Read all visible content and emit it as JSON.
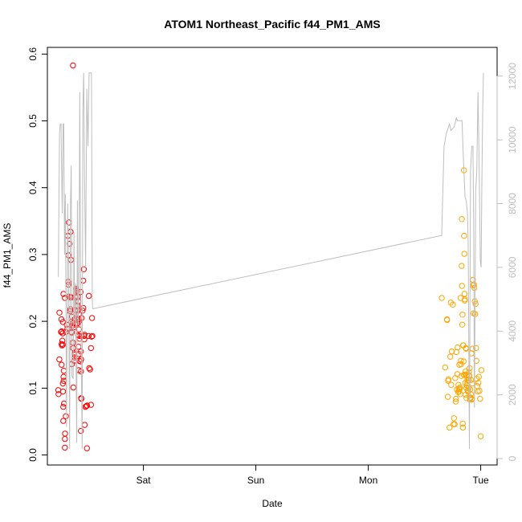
{
  "chart_data": {
    "type": "scatter",
    "title": "ATOM1 Northeast_Pacific f44_PM1_AMS",
    "xlabel": "Date",
    "ylabel": "f44_PM1_AMS",
    "x_axis": {
      "type": "date",
      "range": [
        "2016-08-05T03:30",
        "2016-08-09T03:30"
      ],
      "ticks": [
        {
          "value": "2016-08-06T00:00",
          "label": "Sat"
        },
        {
          "value": "2016-08-07T00:00",
          "label": "Sun"
        },
        {
          "value": "2016-08-08T00:00",
          "label": "Mon"
        },
        {
          "value": "2016-08-09T00:00",
          "label": "Tue"
        }
      ]
    },
    "y_axis_left": {
      "range": [
        -0.015,
        0.61
      ],
      "ticks": [
        "0.0",
        "0.1",
        "0.2",
        "0.3",
        "0.4",
        "0.5",
        "0.6"
      ]
    },
    "y_axis_right": {
      "color": "#bebebe",
      "range": [
        -200,
        12900
      ],
      "ticks": [
        "0",
        "2000",
        "4000",
        "6000",
        "8000",
        "10000",
        "12000"
      ]
    },
    "grid": false,
    "legend": "none",
    "series": [
      {
        "color": "#ff0000",
        "marker": "open-circle",
        "x": [
          "2016-08-05T05:50",
          "2016-08-05T05:53",
          "2016-08-05T06:04",
          "2016-08-05T06:03",
          "2016-08-05T06:25",
          "2016-08-05T06:41",
          "2016-08-05T06:32",
          "2016-08-05T06:49",
          "2016-08-05T06:45",
          "2016-08-05T06:48",
          "2016-08-05T06:30",
          "2016-08-05T06:33",
          "2016-08-05T06:37",
          "2016-08-05T06:56",
          "2016-08-05T06:32",
          "2016-08-05T07:00",
          "2016-08-05T06:57",
          "2016-08-05T06:48",
          "2016-08-05T07:14",
          "2016-08-05T06:59",
          "2016-08-05T06:51",
          "2016-08-05T06:54",
          "2016-08-05T06:54",
          "2016-08-05T07:03",
          "2016-08-05T07:14",
          "2016-08-05T07:16",
          "2016-08-05T07:14",
          "2016-08-05T07:27",
          "2016-08-05T07:28",
          "2016-08-05T07:39",
          "2016-08-05T07:46",
          "2016-08-05T08:06",
          "2016-08-05T07:53",
          "2016-08-05T08:15",
          "2016-08-05T07:58",
          "2016-08-05T08:07",
          "2016-08-05T07:56",
          "2016-08-05T07:59",
          "2016-08-05T08:25",
          "2016-08-05T08:24",
          "2016-08-05T08:19",
          "2016-08-05T08:27",
          "2016-08-05T08:32",
          "2016-08-05T08:42",
          "2016-08-05T08:58",
          "2016-08-05T08:45",
          "2016-08-05T08:44",
          "2016-08-05T08:34",
          "2016-08-05T08:43",
          "2016-08-05T08:38",
          "2016-08-05T08:51",
          "2016-08-05T08:54",
          "2016-08-05T08:56",
          "2016-08-05T09:05",
          "2016-08-05T09:02",
          "2016-08-05T08:58",
          "2016-08-05T09:11",
          "2016-08-05T09:16",
          "2016-08-05T09:15",
          "2016-08-05T09:16",
          "2016-08-05T09:20",
          "2016-08-05T09:27",
          "2016-08-05T09:35",
          "2016-08-05T09:31",
          "2016-08-05T09:36",
          "2016-08-05T09:40",
          "2016-08-05T09:43",
          "2016-08-05T09:38",
          "2016-08-05T09:35",
          "2016-08-05T09:27",
          "2016-08-05T09:33",
          "2016-08-05T09:47",
          "2016-08-05T09:53",
          "2016-08-05T09:56",
          "2016-08-05T10:06",
          "2016-08-05T10:01",
          "2016-08-05T09:58",
          "2016-08-05T10:05",
          "2016-08-05T10:08",
          "2016-08-05T10:05",
          "2016-08-05T10:11",
          "2016-08-05T10:14",
          "2016-08-05T10:12",
          "2016-08-05T10:20",
          "2016-08-05T10:18",
          "2016-08-05T10:13",
          "2016-08-05T10:17",
          "2016-08-05T10:22",
          "2016-08-05T10:23",
          "2016-08-05T10:36",
          "2016-08-05T10:42",
          "2016-08-05T10:33",
          "2016-08-05T10:39",
          "2016-08-05T10:45",
          "2016-08-05T10:39",
          "2016-08-05T10:42",
          "2016-08-05T10:40",
          "2016-08-05T10:48",
          "2016-08-05T10:46",
          "2016-08-05T11:10",
          "2016-08-05T11:09",
          "2016-08-05T11:17",
          "2016-08-05T11:02",
          "2016-08-05T11:23",
          "2016-08-05T11:21",
          "2016-08-05T11:24",
          "2016-08-05T11:28",
          "2016-08-05T11:37",
          "2016-08-05T11:49",
          "2016-08-05T11:57",
          "2016-08-05T11:58",
          "2016-08-05T12:18",
          "2016-08-05T12:26",
          "2016-08-05T12:22",
          "2016-08-05T12:37",
          "2016-08-05T12:48",
          "2016-08-05T12:49",
          "2016-08-05T12:57",
          "2016-08-05T13:06",
          "2016-08-05T13:02"
        ],
        "y": [
          0.097,
          0.091,
          0.213,
          0.143,
          0.184,
          0.171,
          0.166,
          0.165,
          0.182,
          0.199,
          0.203,
          0.185,
          0.164,
          0.241,
          0.135,
          0.126,
          0.117,
          0.107,
          0.235,
          0.111,
          0.095,
          0.072,
          0.051,
          0.077,
          0.024,
          0.032,
          0.011,
          0.058,
          0.184,
          0.195,
          0.189,
          0.348,
          0.328,
          0.316,
          0.299,
          0.237,
          0.259,
          0.255,
          0.218,
          0.236,
          0.215,
          0.334,
          0.292,
          0.236,
          0.583,
          0.136,
          0.207,
          0.199,
          0.183,
          0.184,
          0.194,
          0.197,
          0.168,
          0.191,
          0.101,
          0.16,
          0.141,
          0.152,
          0.146,
          0.15,
          0.203,
          0.195,
          0.204,
          0.237,
          0.249,
          0.246,
          0.247,
          0.243,
          0.236,
          0.217,
          0.197,
          0.245,
          0.202,
          0.197,
          0.23,
          0.237,
          0.223,
          0.216,
          0.162,
          0.179,
          0.127,
          0.188,
          0.203,
          0.2,
          0.211,
          0.151,
          0.141,
          0.178,
          0.174,
          0.244,
          0.143,
          0.14,
          0.155,
          0.084,
          0.036,
          0.085,
          0.125,
          0.205,
          0.178,
          0.22,
          0.261,
          0.278,
          0.216,
          0.173,
          0.178,
          0.18,
          0.045,
          0.072,
          0.073,
          0.01,
          0.074,
          0.178,
          0.13,
          0.238,
          0.128,
          0.075,
          0.16,
          0.177,
          0.178,
          0.205
        ]
      },
      {
        "color": "#ffa500",
        "marker": "open-circle",
        "x": [
          "2016-08-08T15:41",
          "2016-08-08T16:26",
          "2016-08-08T16:48",
          "2016-08-08T16:49",
          "2016-08-08T16:58",
          "2016-08-08T17:04",
          "2016-08-08T17:07",
          "2016-08-08T17:20",
          "2016-08-08T17:30",
          "2016-08-08T17:37",
          "2016-08-08T17:42",
          "2016-08-08T17:50",
          "2016-08-08T18:03",
          "2016-08-08T18:13",
          "2016-08-08T18:18",
          "2016-08-08T18:26",
          "2016-08-08T18:33",
          "2016-08-08T18:40",
          "2016-08-08T18:42",
          "2016-08-08T18:48",
          "2016-08-08T18:55",
          "2016-08-08T19:01",
          "2016-08-08T19:04",
          "2016-08-08T19:10",
          "2016-08-08T19:15",
          "2016-08-08T19:18",
          "2016-08-08T19:23",
          "2016-08-08T19:27",
          "2016-08-08T19:31",
          "2016-08-08T19:35",
          "2016-08-08T19:38",
          "2016-08-08T19:42",
          "2016-08-08T19:46",
          "2016-08-08T19:48",
          "2016-08-08T19:52",
          "2016-08-08T19:55",
          "2016-08-08T19:58",
          "2016-08-08T20:01",
          "2016-08-08T20:04",
          "2016-08-08T20:07",
          "2016-08-08T20:10",
          "2016-08-08T20:12",
          "2016-08-08T20:15",
          "2016-08-08T20:18",
          "2016-08-08T20:20",
          "2016-08-08T20:22",
          "2016-08-08T20:25",
          "2016-08-08T20:27",
          "2016-08-08T20:30",
          "2016-08-08T20:32",
          "2016-08-08T20:35",
          "2016-08-08T20:37",
          "2016-08-08T20:40",
          "2016-08-08T20:42",
          "2016-08-08T20:45",
          "2016-08-08T20:47",
          "2016-08-08T20:50",
          "2016-08-08T20:52",
          "2016-08-08T20:55",
          "2016-08-08T20:58",
          "2016-08-08T21:00",
          "2016-08-08T21:03",
          "2016-08-08T21:06",
          "2016-08-08T21:08",
          "2016-08-08T21:11",
          "2016-08-08T21:14",
          "2016-08-08T21:17",
          "2016-08-08T21:20",
          "2016-08-08T21:23",
          "2016-08-08T21:26",
          "2016-08-08T21:29",
          "2016-08-08T21:32",
          "2016-08-08T21:35",
          "2016-08-08T21:38",
          "2016-08-08T21:41",
          "2016-08-08T21:44",
          "2016-08-08T21:47",
          "2016-08-08T21:50",
          "2016-08-08T21:54",
          "2016-08-08T21:57",
          "2016-08-08T22:01",
          "2016-08-08T22:04",
          "2016-08-08T22:08",
          "2016-08-08T22:12",
          "2016-08-08T22:16",
          "2016-08-08T22:20",
          "2016-08-08T22:25",
          "2016-08-08T22:29",
          "2016-08-08T22:34",
          "2016-08-08T22:39",
          "2016-08-08T22:44",
          "2016-08-08T22:49",
          "2016-08-08T22:54",
          "2016-08-08T23:00",
          "2016-08-08T23:05",
          "2016-08-08T23:11",
          "2016-08-08T23:17",
          "2016-08-08T23:23",
          "2016-08-08T23:30",
          "2016-08-08T23:37",
          "2016-08-08T23:44",
          "2016-08-08T23:52",
          "2016-08-09T00:00",
          "2016-08-09T00:08"
        ],
        "y": [
          0.235,
          0.131,
          0.203,
          0.202,
          0.087,
          0.111,
          0.113,
          0.041,
          0.147,
          0.228,
          0.105,
          0.155,
          0.225,
          0.046,
          0.055,
          0.046,
          0.115,
          0.08,
          0.084,
          0.154,
          0.098,
          0.121,
          0.161,
          0.094,
          0.105,
          0.099,
          0.095,
          0.135,
          0.099,
          0.101,
          0.091,
          0.235,
          0.141,
          0.136,
          0.118,
          0.283,
          0.353,
          0.253,
          0.195,
          0.21,
          0.047,
          0.041,
          0.164,
          0.164,
          0.14,
          0.12,
          0.426,
          0.328,
          0.301,
          0.241,
          0.231,
          0.233,
          0.12,
          0.108,
          0.09,
          0.125,
          0.16,
          0.159,
          0.1,
          0.085,
          0.12,
          0.104,
          0.117,
          0.108,
          0.112,
          0.096,
          0.097,
          0.094,
          0.1,
          0.112,
          0.124,
          0.119,
          0.118,
          0.13,
          0.083,
          0.098,
          0.085,
          0.086,
          0.091,
          0.112,
          0.152,
          0.083,
          0.084,
          0.107,
          0.159,
          0.262,
          0.254,
          0.212,
          0.255,
          0.25,
          0.23,
          0.211,
          0.226,
          0.16,
          0.141,
          0.114,
          0.103,
          0.095,
          0.108,
          0.117,
          0.096,
          0.084,
          0.028,
          0.127
        ]
      },
      {
        "color": "#bebebe",
        "type": "line",
        "axis": "right",
        "x": [
          "2016-08-05T05:50",
          "2016-08-05T06:05",
          "2016-08-05T06:15",
          "2016-08-05T06:25",
          "2016-08-05T06:40",
          "2016-08-05T06:52",
          "2016-08-05T07:00",
          "2016-08-05T07:10",
          "2016-08-05T07:20",
          "2016-08-05T07:35",
          "2016-08-05T07:50",
          "2016-08-05T08:00",
          "2016-08-05T08:15",
          "2016-08-05T08:25",
          "2016-08-05T08:35",
          "2016-08-05T08:45",
          "2016-08-05T09:00",
          "2016-08-05T09:10",
          "2016-08-05T09:20",
          "2016-08-05T09:30",
          "2016-08-05T09:45",
          "2016-08-05T09:55",
          "2016-08-05T10:05",
          "2016-08-05T10:15",
          "2016-08-05T10:25",
          "2016-08-05T10:35",
          "2016-08-05T10:45",
          "2016-08-05T10:55",
          "2016-08-05T11:05",
          "2016-08-05T11:15",
          "2016-08-05T11:25",
          "2016-08-05T11:40",
          "2016-08-05T11:55",
          "2016-08-05T12:10",
          "2016-08-05T12:25",
          "2016-08-05T12:40",
          "2016-08-05T12:55",
          "2016-08-05T13:05",
          "2016-08-05T13:10",
          "2016-08-08T15:40",
          "2016-08-08T16:10",
          "2016-08-08T16:40",
          "2016-08-08T17:20",
          "2016-08-08T17:40",
          "2016-08-08T18:20",
          "2016-08-08T18:50",
          "2016-08-08T19:00",
          "2016-08-08T19:20",
          "2016-08-08T19:40",
          "2016-08-08T20:00",
          "2016-08-08T20:20",
          "2016-08-08T20:40",
          "2016-08-08T20:55",
          "2016-08-08T21:10",
          "2016-08-08T21:20",
          "2016-08-08T21:35",
          "2016-08-08T21:50",
          "2016-08-08T22:05",
          "2016-08-08T22:20",
          "2016-08-08T22:30",
          "2016-08-08T22:40",
          "2016-08-08T22:55",
          "2016-08-08T23:10",
          "2016-08-08T23:25",
          "2016-08-08T23:40",
          "2016-08-08T23:55",
          "2016-08-09T00:05",
          "2016-08-09T00:15",
          "2016-08-09T00:25",
          "2016-08-09T00:35"
        ],
        "y": [
          5700,
          10200,
          10500,
          10500,
          7700,
          10500,
          10500,
          6400,
          8300,
          1000,
          8000,
          6000,
          300,
          7800,
          9200,
          2600,
          2500,
          7100,
          4200,
          5500,
          500,
          8100,
          4200,
          5500,
          11500,
          6200,
          3000,
          300,
          11000,
          12100,
          9000,
          6000,
          11600,
          9800,
          12100,
          12100,
          12100,
          5000,
          4700,
          7000,
          9800,
          10200,
          10500,
          10300,
          10400,
          10700,
          10600,
          10600,
          10600,
          10600,
          9300,
          8200,
          8100,
          7700,
          6800,
          300,
          9000,
          9800,
          9800,
          7500,
          1600,
          8400,
          9000,
          11500,
          9300,
          6200,
          6000,
          8600,
          10800,
          12100
        ]
      }
    ]
  }
}
